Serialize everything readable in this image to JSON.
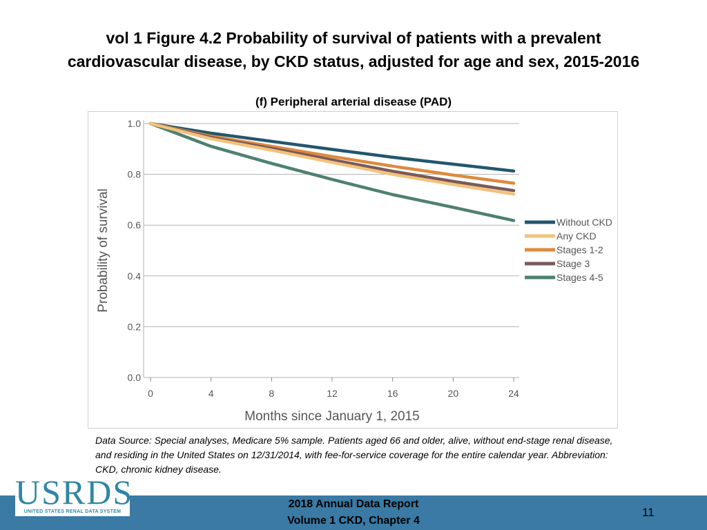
{
  "slide": {
    "title_line1": "vol 1 Figure 4.2 Probability of survival of patients with a prevalent",
    "title_line2": "cardiovascular disease, by CKD status, adjusted for age and sex, 2015-2016"
  },
  "chart_data": {
    "type": "line",
    "title": "(f) Peripheral arterial disease (PAD)",
    "xlabel": "Months since January 1, 2015",
    "ylabel": "Probability of survival",
    "xlim": [
      0,
      24
    ],
    "ylim": [
      0.0,
      1.0
    ],
    "x_ticks": [
      "0",
      "4",
      "8",
      "12",
      "16",
      "20",
      "24"
    ],
    "y_ticks": [
      "0.0",
      "0.2",
      "0.4",
      "0.6",
      "0.8",
      "1.0"
    ],
    "grid": "horizontal",
    "legend_position": "right",
    "x": [
      0,
      4,
      8,
      12,
      16,
      20,
      24
    ],
    "series": [
      {
        "name": "Without CKD",
        "color": "#22566e",
        "values": [
          1.0,
          0.962,
          0.93,
          0.898,
          0.867,
          0.84,
          0.813
        ]
      },
      {
        "name": "Any CKD",
        "color": "#f3c27a",
        "values": [
          1.0,
          0.94,
          0.895,
          0.847,
          0.8,
          0.76,
          0.722
        ]
      },
      {
        "name": "Stages 1-2",
        "color": "#dd8a3e",
        "values": [
          1.0,
          0.95,
          0.91,
          0.87,
          0.832,
          0.797,
          0.765
        ]
      },
      {
        "name": "Stage 3",
        "color": "#7a5a5a",
        "values": [
          1.0,
          0.945,
          0.902,
          0.857,
          0.812,
          0.772,
          0.736
        ]
      },
      {
        "name": "Stages 4-5",
        "color": "#4e8070",
        "values": [
          1.0,
          0.91,
          0.843,
          0.78,
          0.72,
          0.67,
          0.618
        ]
      }
    ]
  },
  "footnote": "Data Source: Special analyses, Medicare 5% sample. Patients aged 66 and older, alive, without end-stage renal disease, and residing in the United States on 12/31/2014, with fee-for-service coverage for the entire calendar year. Abbreviation: CKD, chronic kidney disease.",
  "footer": {
    "report_line1": "2018 Annual Data Report",
    "report_line2": "Volume 1 CKD, Chapter 4",
    "page_number": "11",
    "logo_text": "USRDS",
    "logo_subtext": "UNITED STATES RENAL DATA SYSTEM"
  }
}
